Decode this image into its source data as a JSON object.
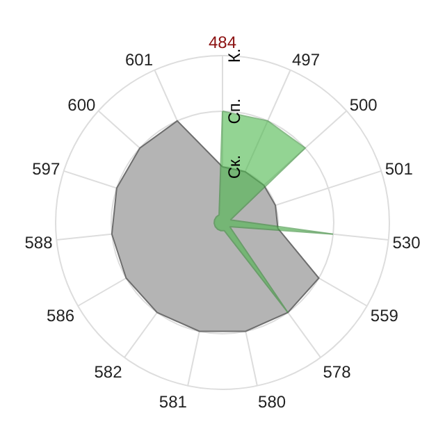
{
  "chart_data": {
    "type": "radar",
    "categories": [
      "484",
      "497",
      "500",
      "501",
      "530",
      "559",
      "578",
      "580",
      "581",
      "582",
      "586",
      "588",
      "597",
      "600",
      "601"
    ],
    "series": [
      {
        "color": "#b4b4b4",
        "values": [
          1,
          1,
          1,
          1,
          1,
          2,
          2,
          2,
          2,
          2,
          2,
          2,
          2,
          2,
          2
        ]
      },
      {
        "color": "#4cb84c",
        "values": [
          2,
          2,
          2,
          0.15,
          2,
          0.15,
          2,
          0.15,
          0.15,
          0.15,
          0.15,
          0.15,
          0.15,
          0.15,
          0.15
        ]
      }
    ],
    "ylim": [
      0,
      3
    ],
    "yticks": [
      {
        "value": 1,
        "label": "Ск."
      },
      {
        "value": 2,
        "label": "Сп."
      },
      {
        "value": 3,
        "label": "К."
      }
    ],
    "grid": true
  }
}
